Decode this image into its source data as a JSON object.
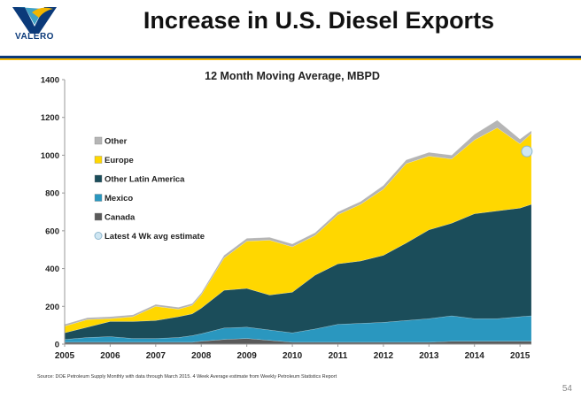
{
  "header": {
    "logo_text": "VALERO",
    "title": "Increase in U.S. Diesel Exports"
  },
  "footer": {
    "source": "Source: DOE Petroleum Supply Monthly with data through March 2015. 4 Week Average estimate from Weekly Petroleum Statistics Report",
    "page_number": "54"
  },
  "colors": {
    "brand_blue": "#0b3a7a",
    "brand_gold": "#f2b600"
  },
  "chart_data": {
    "type": "area",
    "stacked": true,
    "title": "12 Month Moving Average, MBPD",
    "xlabel": "",
    "ylabel": "",
    "xlim": [
      2005,
      2015.25
    ],
    "ylim": [
      0,
      1400
    ],
    "yticks": [
      0,
      200,
      400,
      600,
      800,
      1000,
      1200,
      1400
    ],
    "xticks": [
      "2005",
      "2006",
      "2007",
      "2008",
      "2009",
      "2010",
      "2011",
      "2012",
      "2013",
      "2014",
      "2015"
    ],
    "grid": false,
    "legend": "upper-left",
    "x": [
      2005,
      2005.5,
      2006,
      2006.5,
      2007,
      2007.5,
      2007.8,
      2008,
      2008.5,
      2009,
      2009.5,
      2010,
      2010.5,
      2011,
      2011.5,
      2012,
      2012.5,
      2013,
      2013.5,
      2014,
      2014.5,
      2015,
      2015.25
    ],
    "series": [
      {
        "name": "Canada",
        "color": "#5a5a5a",
        "values": [
          10,
          10,
          10,
          10,
          10,
          10,
          10,
          15,
          25,
          30,
          20,
          10,
          10,
          10,
          10,
          10,
          10,
          10,
          15,
          15,
          15,
          15,
          15
        ]
      },
      {
        "name": "Mexico",
        "color": "#2a97bf",
        "values": [
          15,
          25,
          30,
          20,
          20,
          25,
          35,
          40,
          60,
          60,
          55,
          50,
          70,
          95,
          100,
          105,
          115,
          125,
          135,
          120,
          120,
          130,
          135
        ]
      },
      {
        "name": "Other Latin America",
        "color": "#1b4d5a",
        "values": [
          35,
          55,
          80,
          90,
          95,
          110,
          115,
          135,
          200,
          205,
          185,
          215,
          285,
          320,
          330,
          355,
          410,
          470,
          490,
          555,
          570,
          575,
          590
        ]
      },
      {
        "name": "Europe",
        "color": "#ffd700",
        "values": [
          35,
          40,
          15,
          25,
          75,
          40,
          45,
          70,
          170,
          250,
          290,
          240,
          210,
          260,
          300,
          350,
          420,
          390,
          340,
          390,
          440,
          340,
          375
        ]
      },
      {
        "name": "Other",
        "color": "#b5b5b5",
        "values": [
          10,
          10,
          10,
          10,
          10,
          10,
          10,
          10,
          15,
          15,
          15,
          15,
          15,
          15,
          15,
          20,
          20,
          20,
          20,
          30,
          40,
          25,
          15
        ]
      }
    ],
    "estimate": {
      "name": "Latest 4 Wk avg estimate",
      "x": 2015.15,
      "y": 1020
    }
  }
}
